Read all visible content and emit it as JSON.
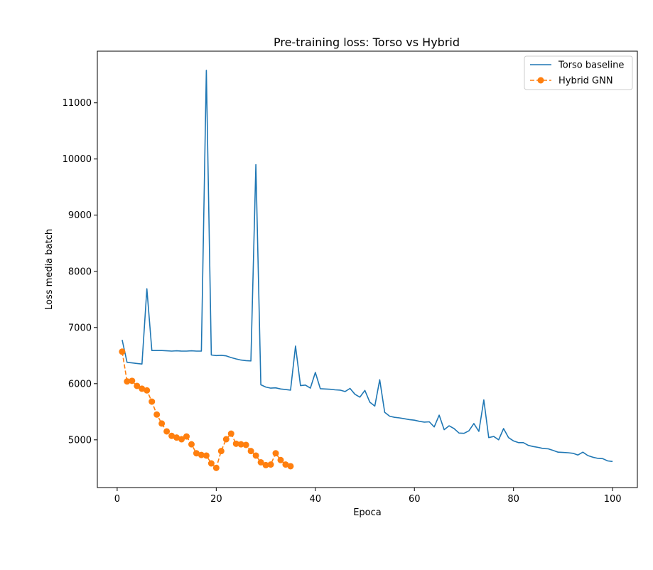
{
  "chart_data": {
    "type": "line",
    "title": "Pre-training loss: Torso vs Hybrid",
    "xlabel": "Epoca",
    "ylabel": "Loss media batch",
    "xlim": [
      -4,
      105
    ],
    "ylim": [
      4150,
      11920
    ],
    "xticks": [
      0,
      20,
      40,
      60,
      80,
      100
    ],
    "yticks": [
      5000,
      6000,
      7000,
      8000,
      9000,
      10000,
      11000
    ],
    "legend": "top-right",
    "grid": false,
    "series": [
      {
        "name": "Torso baseline",
        "color": "#1f77b4",
        "style": "solid",
        "marker": "none",
        "x": [
          1,
          2,
          3,
          4,
          5,
          6,
          7,
          8,
          9,
          10,
          11,
          12,
          13,
          14,
          15,
          16,
          17,
          18,
          19,
          20,
          21,
          22,
          23,
          24,
          25,
          26,
          27,
          28,
          29,
          30,
          31,
          32,
          33,
          34,
          35,
          36,
          37,
          38,
          39,
          40,
          41,
          42,
          43,
          44,
          45,
          46,
          47,
          48,
          49,
          50,
          51,
          52,
          53,
          54,
          55,
          56,
          57,
          58,
          59,
          60,
          61,
          62,
          63,
          64,
          65,
          66,
          67,
          68,
          69,
          70,
          71,
          72,
          73,
          74,
          75,
          76,
          77,
          78,
          79,
          80,
          81,
          82,
          83,
          84,
          85,
          86,
          87,
          88,
          89,
          90,
          91,
          92,
          93,
          94,
          95,
          96,
          97,
          98,
          99,
          100
        ],
        "y": [
          6780,
          6380,
          6370,
          6360,
          6350,
          7690,
          6590,
          6590,
          6590,
          6585,
          6580,
          6585,
          6580,
          6580,
          6585,
          6580,
          6580,
          11580,
          6510,
          6500,
          6505,
          6495,
          6465,
          6440,
          6420,
          6410,
          6405,
          9900,
          5980,
          5940,
          5920,
          5925,
          5905,
          5895,
          5885,
          6670,
          5965,
          5975,
          5920,
          6200,
          5910,
          5905,
          5900,
          5890,
          5885,
          5860,
          5915,
          5810,
          5760,
          5880,
          5670,
          5600,
          6070,
          5490,
          5420,
          5400,
          5390,
          5375,
          5360,
          5350,
          5330,
          5315,
          5320,
          5230,
          5440,
          5180,
          5250,
          5200,
          5120,
          5115,
          5160,
          5290,
          5150,
          5710,
          5040,
          5060,
          5000,
          5200,
          5040,
          4980,
          4950,
          4950,
          4900,
          4880,
          4865,
          4845,
          4840,
          4810,
          4780,
          4775,
          4770,
          4760,
          4730,
          4780,
          4720,
          4690,
          4670,
          4665,
          4625,
          4615
        ]
      },
      {
        "name": "Hybrid GNN",
        "color": "#ff7f0e",
        "style": "dashed",
        "marker": "circle",
        "x": [
          1,
          2,
          3,
          4,
          5,
          6,
          7,
          8,
          9,
          10,
          11,
          12,
          13,
          14,
          15,
          16,
          17,
          18,
          19,
          20,
          21,
          22,
          23,
          24,
          25,
          26,
          27,
          28,
          29,
          30,
          31,
          32,
          33,
          34,
          35
        ],
        "y": [
          6570,
          6040,
          6050,
          5960,
          5910,
          5880,
          5680,
          5450,
          5290,
          5150,
          5070,
          5040,
          5010,
          5060,
          4920,
          4760,
          4730,
          4720,
          4580,
          4500,
          4800,
          5010,
          5110,
          4930,
          4920,
          4910,
          4800,
          4720,
          4600,
          4550,
          4560,
          4760,
          4640,
          4560,
          4530
        ]
      }
    ]
  }
}
